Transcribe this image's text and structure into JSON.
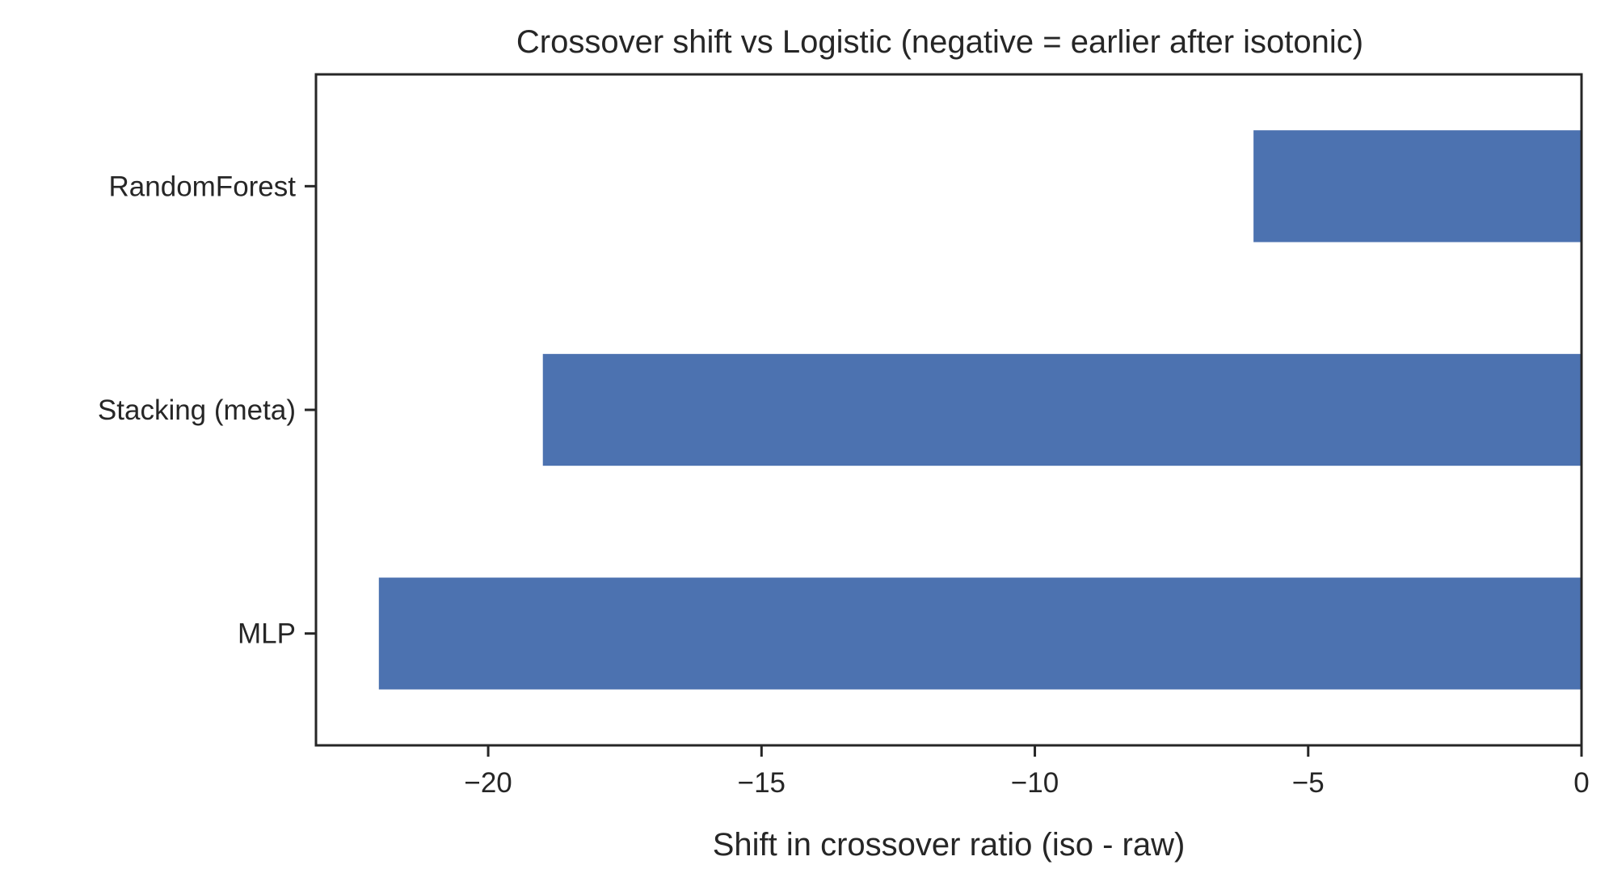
{
  "chart_data": {
    "type": "bar",
    "orientation": "horizontal",
    "title": "Crossover shift vs Logistic (negative = earlier after isotonic)",
    "xlabel": "Shift in crossover ratio (iso - raw)",
    "ylabel": "",
    "categories": [
      "RandomForest",
      "Stacking (meta)",
      "MLP"
    ],
    "values": [
      -6,
      -19,
      -22
    ],
    "xlim": [
      -23.15,
      0
    ],
    "xticks": [
      -20,
      -15,
      -10,
      -5,
      0
    ],
    "xtick_labels": [
      "−20",
      "−15",
      "−10",
      "−5",
      "0"
    ],
    "grid": false,
    "bar_color": "#4c72b0"
  }
}
